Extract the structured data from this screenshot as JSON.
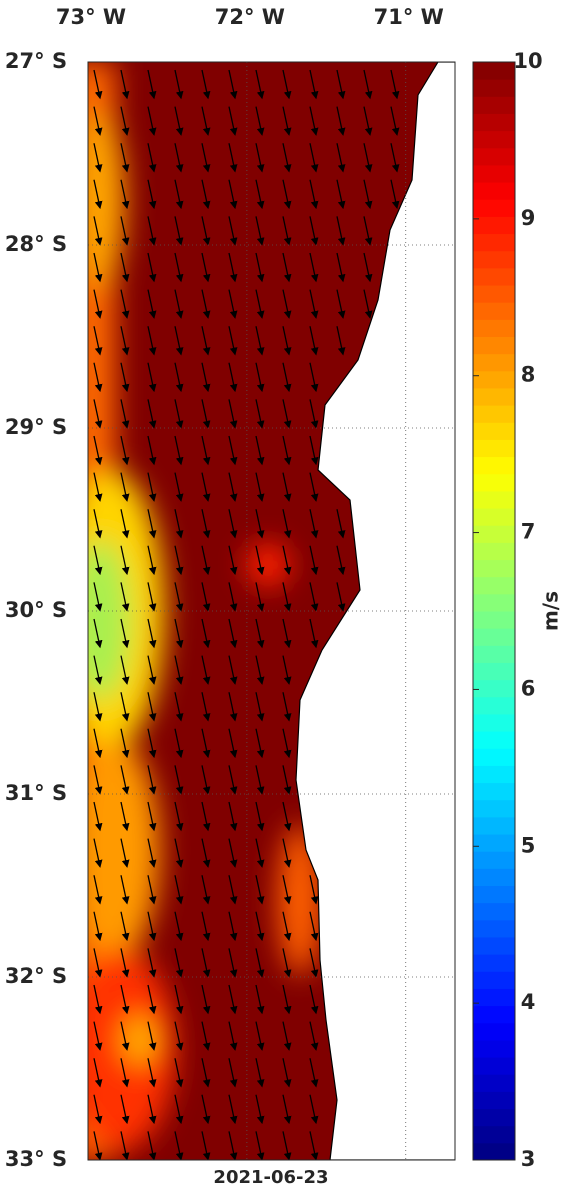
{
  "map": {
    "date": "2021-06-23",
    "lonlim": [
      -73,
      -70.69
    ],
    "latlim": [
      -33,
      -27
    ],
    "lon_ticks": [
      {
        "value": -73,
        "label": "73° W"
      },
      {
        "value": -72,
        "label": "72° W"
      },
      {
        "value": -71,
        "label": "71° W"
      }
    ],
    "lat_ticks": [
      {
        "value": -27,
        "label": "27° S"
      },
      {
        "value": -28,
        "label": "28° S"
      },
      {
        "value": -29,
        "label": "29° S"
      },
      {
        "value": -30,
        "label": "30° S"
      },
      {
        "value": -31,
        "label": "31° S"
      },
      {
        "value": -32,
        "label": "32° S"
      },
      {
        "value": -33,
        "label": "33° S"
      }
    ]
  },
  "colorbar": {
    "label": "m/s",
    "range": [
      3,
      10
    ],
    "ticks": [
      3,
      4,
      5,
      6,
      7,
      8,
      9,
      10
    ]
  }
}
